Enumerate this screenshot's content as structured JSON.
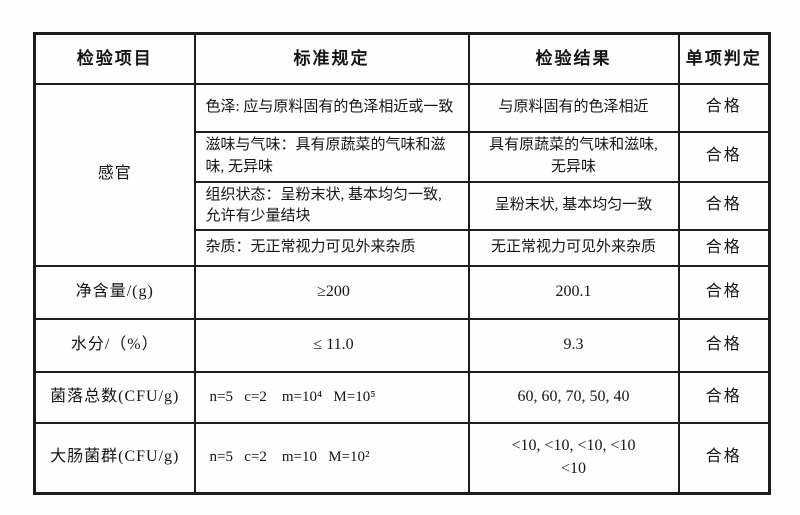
{
  "table": {
    "border_color": "#1c1c1c",
    "headers": {
      "item": "检验项目",
      "standard": "标准规定",
      "result": "检验结果",
      "judgment": "单项判定"
    },
    "sensory": {
      "label": "感官",
      "subrows": [
        {
          "standard": "色泽: 应与原料固有的色泽相近或一致",
          "result": "与原料固有的色泽相近",
          "judgment": "合格"
        },
        {
          "standard": "滋味与气味：具有原蔬菜的气味和滋\n味, 无异味",
          "result": "具有原蔬菜的气味和滋味,\n无异味",
          "judgment": "合格"
        },
        {
          "standard": "组织状态：呈粉末状, 基本均匀一致,\n允许有少量结块",
          "result": "呈粉末状, 基本均匀一致",
          "judgment": "合格"
        },
        {
          "standard": "杂质：无正常视力可见外来杂质",
          "result": "无正常视力可见外来杂质",
          "judgment": "合格"
        }
      ]
    },
    "rows": [
      {
        "item": "净含量/(g)",
        "standard": "≥200",
        "result": "200.1",
        "judgment": "合格"
      },
      {
        "item": "水分/（%）",
        "standard": "≤ 11.0",
        "result": "9.3",
        "judgment": "合格"
      },
      {
        "item": "菌落总数(CFU/g)",
        "standard": "n=5   c=2    m=10⁴   M=10⁵",
        "result": "60, 60, 70, 50, 40",
        "judgment": "合格"
      },
      {
        "item": "大肠菌群(CFU/g)",
        "standard": "n=5   c=2    m=10   M=10²",
        "result": "<10, <10, <10, <10\n<10",
        "judgment": "合格"
      }
    ]
  }
}
